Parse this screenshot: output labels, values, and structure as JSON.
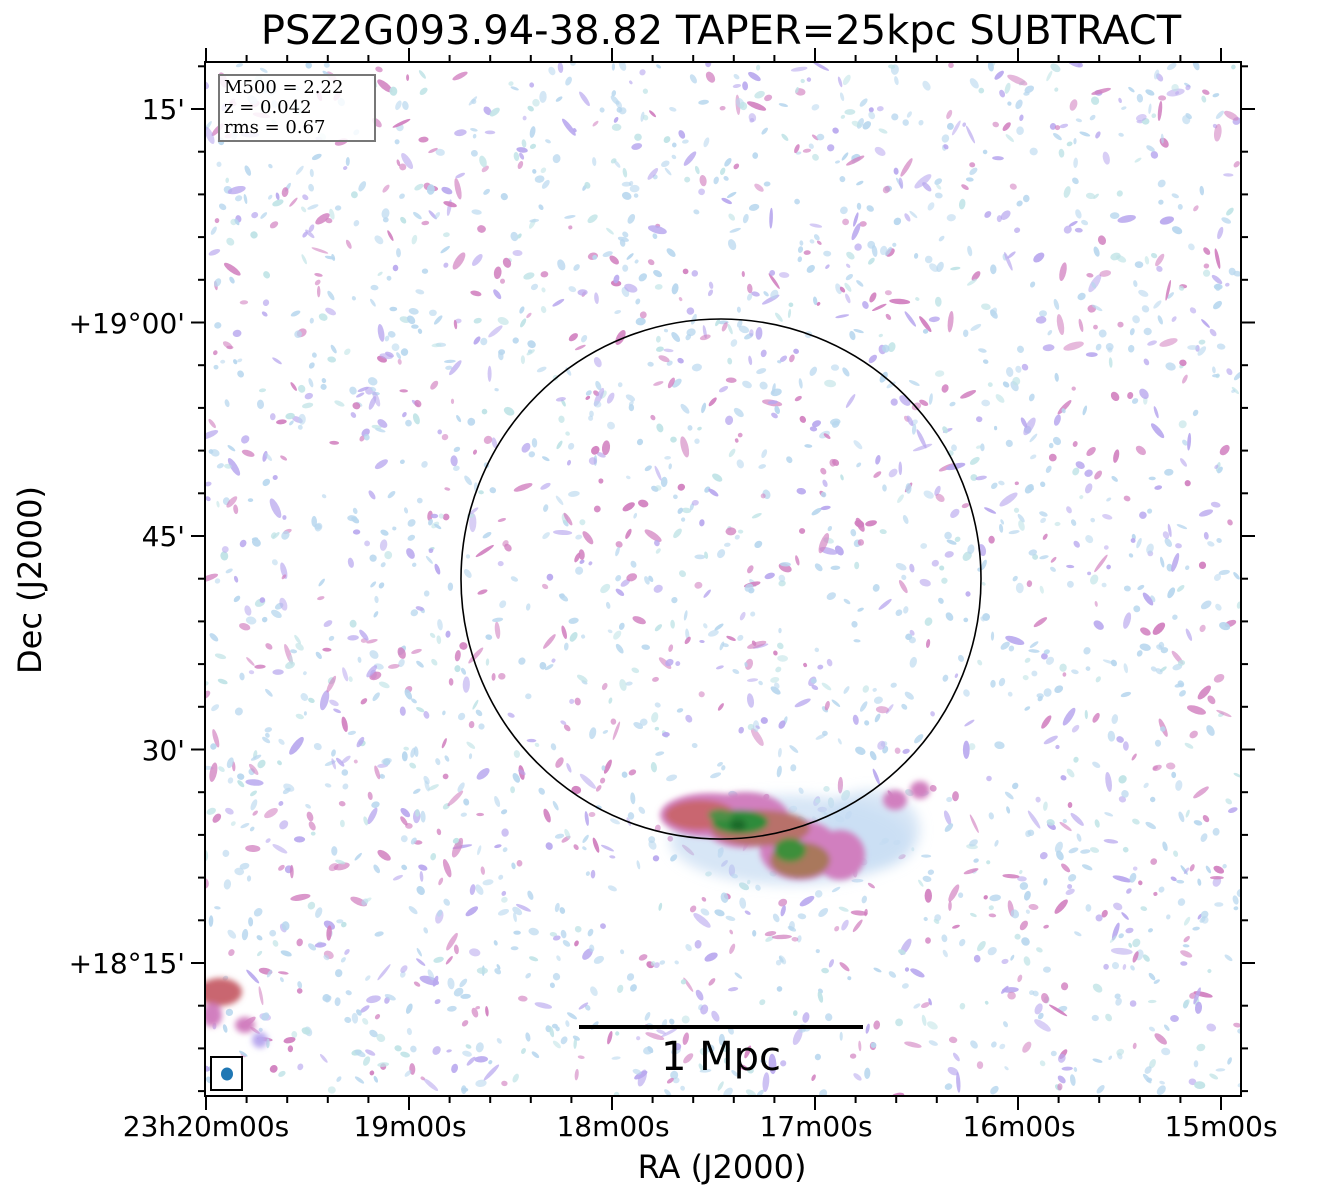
{
  "title": "PSZ2G093.94-38.82 TAPER=25kpc SUBTRACT",
  "axes": {
    "xlabel": "RA (J2000)",
    "ylabel": "Dec (J2000)",
    "x_ticks": [
      "23h20m00s",
      "19m00s",
      "18m00s",
      "17m00s",
      "16m00s",
      "15m00s"
    ],
    "y_ticks": [
      "15'",
      "+19°00'",
      "45'",
      "30'",
      "+18°15'"
    ]
  },
  "info": {
    "m500": "M500 = 2.22",
    "z": "z = 0.042",
    "rms": "rms = 0.67"
  },
  "scale_bar": {
    "label": "1 Mpc"
  },
  "colors": {
    "noise_light": "#b8d7ee",
    "noise_teal": "#bfe3e6",
    "noise_violet": "#b9a8ee",
    "emission_pink": "#d17fbf",
    "emission_red": "#c9666f",
    "emission_green": "#2e8b3a",
    "beam": "#1f77b4"
  }
}
